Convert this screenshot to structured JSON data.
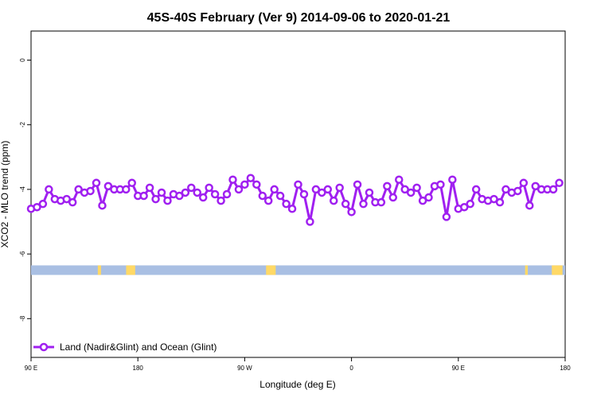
{
  "chart_data": {
    "type": "line",
    "title": "45S-40S February (Ver 9)   2014-09-06 to 2020-01-21",
    "xlabel": "Longitude (deg E)",
    "ylabel": "XCO2 - MLO trend (ppm)",
    "x_tick_labels": [
      "90 E",
      "180",
      "90 W",
      "0",
      "90 E",
      "180"
    ],
    "y_tick_labels": [
      "0",
      "-2",
      "-4",
      "-6",
      "-8"
    ],
    "y_ticks": [
      0,
      -2,
      -4,
      -6,
      -8
    ],
    "ylim": [
      -9.2,
      0.9
    ],
    "x_index_range": [
      0,
      90
    ],
    "grid": false,
    "legend_position": "bottom-left",
    "series": [
      {
        "name": "Land (Nadir&Glint) and Ocean (Glint)",
        "color": "#A020F0",
        "values": [
          -4.6,
          -4.55,
          -4.45,
          -4.0,
          -4.3,
          -4.35,
          -4.3,
          -4.4,
          -4.0,
          -4.1,
          -4.05,
          -3.8,
          -4.5,
          -3.9,
          -4.0,
          -4.0,
          -4.0,
          -3.8,
          -4.2,
          -4.2,
          -3.95,
          -4.3,
          -4.1,
          -4.35,
          -4.15,
          -4.2,
          -4.1,
          -3.95,
          -4.1,
          -4.25,
          -3.95,
          -4.15,
          -4.35,
          -4.15,
          -3.7,
          -4.0,
          -3.85,
          -3.65,
          -3.85,
          -4.2,
          -4.35,
          -4.0,
          -4.2,
          -4.45,
          -4.6,
          -3.85,
          -4.15,
          -5.0,
          -4.0,
          -4.1,
          -4.0,
          -4.35,
          -3.95,
          -4.45,
          -4.7,
          -3.85,
          -4.45,
          -4.1,
          -4.4,
          -4.4,
          -3.9,
          -4.25,
          -3.7,
          -4.0,
          -4.1,
          -3.95,
          -4.35,
          -4.25,
          -3.9,
          -3.85,
          -4.85,
          -3.7,
          -4.6,
          -4.55,
          -4.45,
          -4.0,
          -4.3,
          -4.35,
          -4.3,
          -4.4,
          -4.0,
          -4.1,
          -4.05,
          -3.8,
          -4.5,
          -3.9,
          -4.0,
          -4.0,
          -4.0,
          -3.8
        ]
      }
    ],
    "coverage_strip": {
      "y_center": -6.5,
      "ocean_color": "#A9BFE3",
      "land_color": "#FFD966",
      "land_fractions": [
        [
          0.125,
          0.131
        ],
        [
          0.178,
          0.195
        ],
        [
          0.44,
          0.458
        ],
        [
          0.925,
          0.93
        ],
        [
          0.975,
          0.995
        ]
      ]
    }
  }
}
